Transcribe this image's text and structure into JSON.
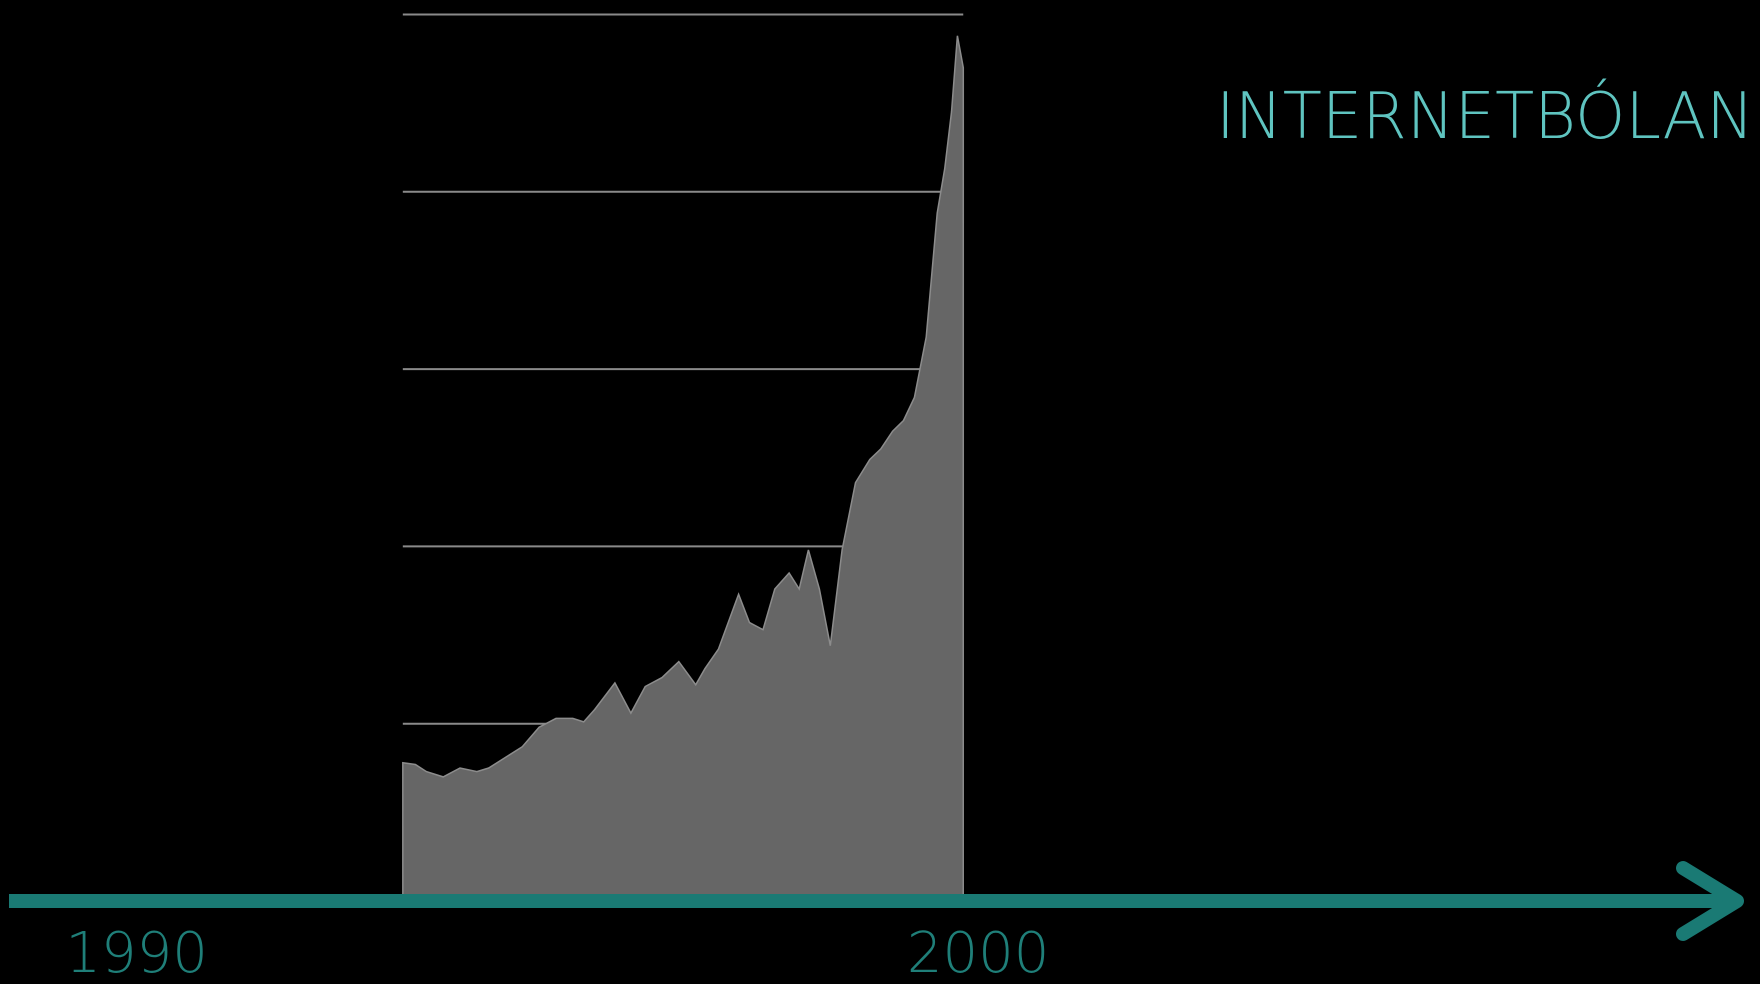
{
  "chart_data": {
    "type": "area",
    "title": "INTERNETBÓLAN",
    "x": [
      1994.01,
      1994.16,
      1994.29,
      1994.49,
      1994.69,
      1994.89,
      1995.03,
      1995.23,
      1995.43,
      1995.63,
      1995.83,
      1996.03,
      1996.16,
      1996.29,
      1996.53,
      1996.72,
      1996.89,
      1997.09,
      1997.29,
      1997.49,
      1997.6,
      1997.76,
      1998.0,
      1998.13,
      1998.29,
      1998.43,
      1998.6,
      1998.72,
      1998.83,
      1998.96,
      1999.09,
      1999.23,
      1999.39,
      1999.56,
      1999.69,
      1999.83,
      1999.96,
      2000.09,
      2000.23,
      2000.36,
      2000.45,
      2000.53,
      2000.6,
      2000.67
    ],
    "series": [
      {
        "color": "#666666",
        "values": [
          780,
          770,
          730,
          700,
          750,
          730,
          750,
          810,
          870,
          980,
          1030,
          1030,
          1010,
          1080,
          1230,
          1060,
          1210,
          1260,
          1350,
          1220,
          1310,
          1420,
          1730,
          1570,
          1530,
          1760,
          1850,
          1760,
          1980,
          1760,
          1440,
          1980,
          2360,
          2490,
          2550,
          2650,
          2710,
          2840,
          3180,
          3880,
          4130,
          4450,
          4880,
          4700
        ]
      }
    ],
    "xlim": [
      1989.33,
      2009.96
    ],
    "xticks": [
      1990,
      2000
    ],
    "ylim": [
      0,
      5000
    ],
    "yticks": [
      1000,
      2000,
      3000,
      4000,
      5000
    ],
    "grid": true,
    "axis_color": "#1a7a74",
    "grid_color": "#8a8a8a"
  }
}
